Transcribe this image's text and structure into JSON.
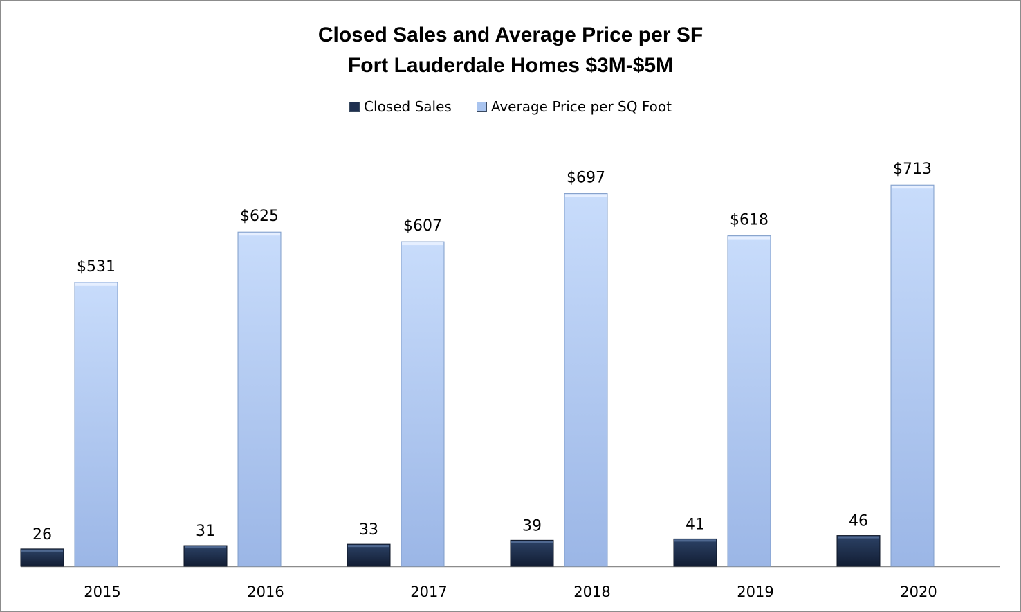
{
  "chart_data": {
    "type": "bar",
    "title": "Closed Sales and Average Price per SF",
    "subtitle": "Fort Lauderdale Homes $3M-$5M",
    "xlabel": "",
    "ylabel": "",
    "legend_position": "top",
    "grid": false,
    "categories": [
      "2015",
      "2016",
      "2017",
      "2018",
      "2019",
      "2020"
    ],
    "series": [
      {
        "name": "Closed Sales",
        "values": [
          26,
          31,
          33,
          39,
          41,
          46
        ],
        "labels": [
          "26",
          "31",
          "33",
          "39",
          "41",
          "46"
        ],
        "color": "#1f3050"
      },
      {
        "name": "Average Price per SQ Foot",
        "values": [
          531,
          625,
          607,
          697,
          618,
          713
        ],
        "labels": [
          "$531",
          "$625",
          "$607",
          "$697",
          "$618",
          "$713"
        ],
        "color": "#a9c4ef"
      }
    ],
    "ylim": [
      0,
      800
    ]
  }
}
